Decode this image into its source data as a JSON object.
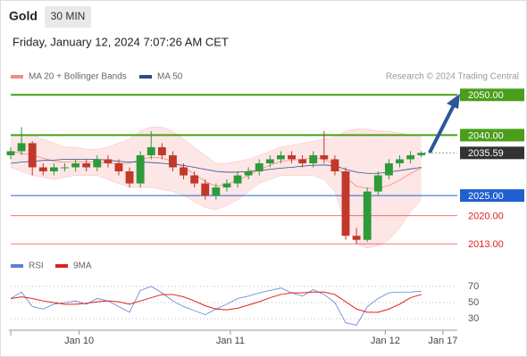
{
  "header": {
    "symbol": "Gold",
    "interval": "30 MIN",
    "datetime": "Friday, January 12, 2024 7:07:26 AM CET"
  },
  "chart_data": [
    {
      "type": "candlestick",
      "source": "Research © 2024 Trading Central",
      "x": [
        0,
        3,
        6,
        9,
        12,
        15,
        18,
        21,
        24,
        27,
        30,
        33,
        36,
        39,
        42,
        45,
        48,
        51,
        54,
        57,
        60,
        63,
        66,
        69,
        72,
        75,
        78,
        81,
        84,
        87,
        90,
        93,
        96,
        99,
        102,
        105,
        108,
        111,
        114
      ],
      "open": [
        2035,
        2036,
        2038,
        2032,
        2031,
        2032,
        2032,
        2033,
        2032,
        2034,
        2033,
        2031,
        2028,
        2035,
        2037,
        2035,
        2032,
        2030,
        2028,
        2025,
        2027,
        2028,
        2030,
        2031,
        2033,
        2034,
        2035,
        2034,
        2033,
        2035,
        2034,
        2031,
        2015,
        2014,
        2026,
        2030,
        2033,
        2034,
        2035
      ],
      "high": [
        2037,
        2042,
        2038.5,
        2033,
        2033,
        2033,
        2034,
        2034,
        2035,
        2035,
        2034,
        2032,
        2036,
        2041,
        2038,
        2036,
        2033,
        2031,
        2029,
        2028,
        2029,
        2031,
        2032,
        2034,
        2035,
        2036,
        2036,
        2035,
        2036,
        2041,
        2035,
        2032,
        2017,
        2027,
        2031,
        2034,
        2035,
        2036,
        2036
      ],
      "low": [
        2034,
        2035,
        2030,
        2030,
        2030,
        2031,
        2031,
        2031,
        2031,
        2032,
        2030,
        2027,
        2027,
        2034,
        2034,
        2031,
        2029,
        2027,
        2024,
        2024,
        2026,
        2027,
        2029,
        2030,
        2032,
        2033,
        2033,
        2032,
        2032,
        2033,
        2030,
        2014,
        2013,
        2013.5,
        2025,
        2029,
        2032,
        2033,
        2034.5
      ],
      "close": [
        2036,
        2038,
        2032,
        2031,
        2032,
        2032,
        2033,
        2032,
        2034,
        2033,
        2031,
        2028,
        2035,
        2037,
        2035,
        2032,
        2030,
        2028,
        2025,
        2027,
        2028,
        2030,
        2031,
        2033,
        2034,
        2035,
        2034,
        2033,
        2035,
        2034,
        2031,
        2015,
        2014,
        2026,
        2030,
        2033,
        2034,
        2035,
        2035.59
      ],
      "up_color": "#2f9a3a",
      "down_color": "#c0392b",
      "series": [
        {
          "name": "MA 20 + Bollinger Bands",
          "color": "#f28b82",
          "band_color": "#fde2e2",
          "values": [
            2036,
            2035.5,
            2035,
            2034.3,
            2033.5,
            2033.3,
            2033.5,
            2033.3,
            2033.3,
            2033,
            2033,
            2033,
            2034,
            2034.5,
            2034.3,
            2033.5,
            2032,
            2030.3,
            2028.5,
            2027.3,
            2027.8,
            2028.8,
            2030,
            2031.5,
            2032.5,
            2033.5,
            2033.8,
            2034,
            2034.3,
            2034,
            2032.8,
            2029.5,
            2027.3,
            2026.8,
            2026.8,
            2027.5,
            2028.8,
            2030.5,
            2031.8
          ],
          "upper": [
            2040,
            2040,
            2040,
            2039,
            2038,
            2037,
            2037,
            2036.5,
            2036.5,
            2037,
            2038,
            2039,
            2041,
            2042,
            2042,
            2041,
            2039,
            2037,
            2035,
            2033,
            2033,
            2033.5,
            2034,
            2035,
            2036,
            2037,
            2037.5,
            2038,
            2038.5,
            2039,
            2039.5,
            2041,
            2041.5,
            2041.5,
            2041,
            2041,
            2040.5,
            2040,
            2039.5
          ],
          "lower": [
            2032,
            2031,
            2030,
            2029.5,
            2029,
            2029.5,
            2030,
            2030,
            2030,
            2029,
            2028,
            2027,
            2027,
            2027,
            2026.5,
            2026,
            2025,
            2023.5,
            2022,
            2021.5,
            2022.5,
            2024,
            2026,
            2028,
            2029,
            2030,
            2030,
            2030,
            2030,
            2029,
            2026,
            2018,
            2013,
            2012,
            2012.5,
            2014,
            2017,
            2021,
            2024
          ]
        },
        {
          "name": "MA 50",
          "color": "#2b4c8c",
          "values": [
            2033,
            2033.3,
            2033.5,
            2033.7,
            2033.8,
            2034,
            2034,
            2034,
            2034,
            2033.8,
            2033.5,
            2033.3,
            2033.3,
            2033.2,
            2033,
            2032.8,
            2032.5,
            2032,
            2031.5,
            2031,
            2030.8,
            2030.8,
            2031,
            2031.2,
            2031.5,
            2031.8,
            2032,
            2032.3,
            2032.5,
            2032.6,
            2032.4,
            2031.5,
            2030.8,
            2030.5,
            2030.5,
            2030.8,
            2031.2,
            2031.6,
            2032
          ]
        }
      ],
      "levels": [
        {
          "value": 2050,
          "label": "2050.00",
          "color": "#4a9e1a",
          "boxed": true
        },
        {
          "value": 2040,
          "label": "2040.00",
          "color": "#4a9e1a",
          "boxed": true
        },
        {
          "value": 2025,
          "label": "2025.00",
          "color": "#1f5fd1",
          "boxed": true
        },
        {
          "value": 2020,
          "label": "2020.00",
          "color": "#e02020",
          "boxed": false
        },
        {
          "value": 2013,
          "label": "2013.00",
          "color": "#e02020",
          "boxed": false
        }
      ],
      "last_price": {
        "value": 2035.59,
        "color": "#333333"
      },
      "xlim": [
        0,
        124
      ],
      "ylim": [
        2011.5,
        2052.5
      ]
    },
    {
      "type": "line",
      "x": [
        0,
        3,
        6,
        9,
        12,
        15,
        18,
        21,
        24,
        27,
        30,
        33,
        36,
        39,
        42,
        45,
        48,
        51,
        54,
        57,
        60,
        63,
        66,
        69,
        72,
        75,
        78,
        81,
        84,
        87,
        90,
        93,
        96,
        99,
        102,
        105,
        108,
        111,
        114
      ],
      "series": [
        {
          "name": "RSI",
          "color": "#5b7fd6",
          "values": [
            55,
            63,
            45,
            42,
            48,
            50,
            52,
            48,
            55,
            52,
            45,
            38,
            65,
            70,
            62,
            52,
            45,
            40,
            35,
            42,
            48,
            55,
            58,
            62,
            65,
            68,
            62,
            58,
            66,
            60,
            50,
            25,
            22,
            45,
            55,
            62,
            63,
            63,
            64
          ]
        },
        {
          "name": "9MA",
          "color": "#e0201b",
          "values": [
            55,
            57,
            55,
            52,
            50,
            48,
            48,
            49,
            51,
            52,
            51,
            48,
            52,
            56,
            60,
            60,
            57,
            52,
            46,
            42,
            41,
            43,
            47,
            51,
            56,
            60,
            62,
            62,
            63,
            63,
            60,
            51,
            42,
            38,
            38,
            42,
            48,
            56,
            60
          ]
        }
      ],
      "xlim": [
        0,
        124
      ],
      "ylim": [
        18,
        82
      ],
      "yticks": [
        30,
        50,
        70
      ],
      "xticks": [
        {
          "value": 19,
          "label": "Jan 10"
        },
        {
          "value": 61,
          "label": "Jan 11"
        },
        {
          "value": 104,
          "label": "Jan 12"
        },
        {
          "value": 120,
          "label": "Jan 17"
        }
      ]
    }
  ]
}
